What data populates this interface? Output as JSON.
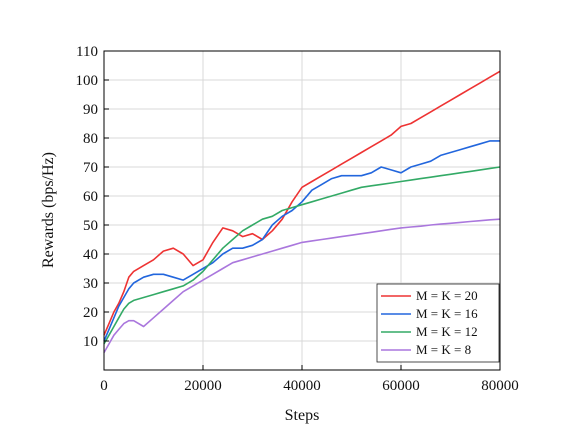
{
  "chart_data": {
    "type": "line",
    "xlabel": "Steps",
    "ylabel": "Rewards (bps/Hz)",
    "xlim": [
      0,
      80000
    ],
    "ylim": [
      0,
      110
    ],
    "xticks": [
      0,
      20000,
      40000,
      60000,
      80000
    ],
    "xtick_labels": [
      "0",
      "20000",
      "40000",
      "60000",
      "80000"
    ],
    "yticks": [
      10,
      20,
      30,
      40,
      50,
      60,
      70,
      80,
      90,
      100,
      110
    ],
    "ytick_labels": [
      "10",
      "20",
      "30",
      "40",
      "50",
      "60",
      "70",
      "80",
      "90",
      "100",
      "110"
    ],
    "grid": true,
    "legend_position": "bottom-right",
    "series": [
      {
        "name": "M = K = 20",
        "color": "#ee3333",
        "x": [
          0,
          1000,
          2000,
          3000,
          4000,
          5000,
          6000,
          8000,
          10000,
          12000,
          14000,
          16000,
          18000,
          20000,
          22000,
          24000,
          26000,
          28000,
          30000,
          32000,
          34000,
          36000,
          38000,
          40000,
          42000,
          44000,
          46000,
          48000,
          50000,
          52000,
          54000,
          56000,
          58000,
          60000,
          62000,
          64000,
          66000,
          68000,
          70000,
          72000,
          74000,
          76000,
          78000,
          80000
        ],
        "y": [
          12,
          16,
          20,
          23,
          27,
          32,
          34,
          36,
          38,
          41,
          42,
          40,
          36,
          38,
          44,
          49,
          48,
          46,
          47,
          45,
          48,
          52,
          58,
          63,
          65,
          67,
          69,
          71,
          73,
          75,
          77,
          79,
          81,
          84,
          85,
          87,
          89,
          91,
          93,
          95,
          97,
          99,
          101,
          103
        ]
      },
      {
        "name": "M = K = 16",
        "color": "#2266dd",
        "x": [
          0,
          1000,
          2000,
          3000,
          4000,
          5000,
          6000,
          8000,
          10000,
          12000,
          14000,
          16000,
          18000,
          20000,
          22000,
          24000,
          26000,
          28000,
          30000,
          32000,
          34000,
          36000,
          38000,
          40000,
          42000,
          44000,
          46000,
          48000,
          50000,
          52000,
          54000,
          56000,
          58000,
          60000,
          62000,
          64000,
          66000,
          68000,
          70000,
          72000,
          74000,
          76000,
          78000,
          80000
        ],
        "y": [
          10,
          14,
          18,
          22,
          25,
          28,
          30,
          32,
          33,
          33,
          32,
          31,
          33,
          35,
          37,
          40,
          42,
          42,
          43,
          45,
          50,
          53,
          55,
          58,
          62,
          64,
          66,
          67,
          67,
          67,
          68,
          70,
          69,
          68,
          70,
          71,
          72,
          74,
          75,
          76,
          77,
          78,
          79,
          79
        ]
      },
      {
        "name": "M = K = 12",
        "color": "#33aa66",
        "x": [
          0,
          1000,
          2000,
          3000,
          4000,
          5000,
          6000,
          8000,
          10000,
          12000,
          14000,
          16000,
          18000,
          20000,
          22000,
          24000,
          26000,
          28000,
          30000,
          32000,
          34000,
          36000,
          38000,
          40000,
          42000,
          44000,
          46000,
          48000,
          50000,
          52000,
          54000,
          56000,
          58000,
          60000,
          62000,
          64000,
          66000,
          68000,
          70000,
          72000,
          74000,
          76000,
          78000,
          80000
        ],
        "y": [
          9,
          12,
          15,
          18,
          21,
          23,
          24,
          25,
          26,
          27,
          28,
          29,
          31,
          34,
          38,
          42,
          45,
          48,
          50,
          52,
          53,
          55,
          56,
          57,
          58,
          59,
          60,
          61,
          62,
          63,
          63.5,
          64,
          64.5,
          65,
          65.5,
          66,
          66.5,
          67,
          67.5,
          68,
          68.5,
          69,
          69.5,
          70
        ]
      },
      {
        "name": "M = K = 8",
        "color": "#aa77dd",
        "x": [
          0,
          1000,
          2000,
          3000,
          4000,
          5000,
          6000,
          8000,
          10000,
          12000,
          14000,
          16000,
          18000,
          20000,
          22000,
          24000,
          26000,
          28000,
          30000,
          32000,
          34000,
          36000,
          38000,
          40000,
          42000,
          44000,
          46000,
          48000,
          50000,
          52000,
          54000,
          56000,
          58000,
          60000,
          62000,
          64000,
          66000,
          68000,
          70000,
          72000,
          74000,
          76000,
          78000,
          80000
        ],
        "y": [
          6,
          9,
          12,
          14,
          16,
          17,
          17,
          15,
          18,
          21,
          24,
          27,
          29,
          31,
          33,
          35,
          37,
          38,
          39,
          40,
          41,
          42,
          43,
          44,
          44.5,
          45,
          45.5,
          46,
          46.5,
          47,
          47.5,
          48,
          48.5,
          49,
          49.3,
          49.6,
          50,
          50.3,
          50.6,
          50.9,
          51.2,
          51.5,
          51.8,
          52
        ]
      }
    ]
  }
}
